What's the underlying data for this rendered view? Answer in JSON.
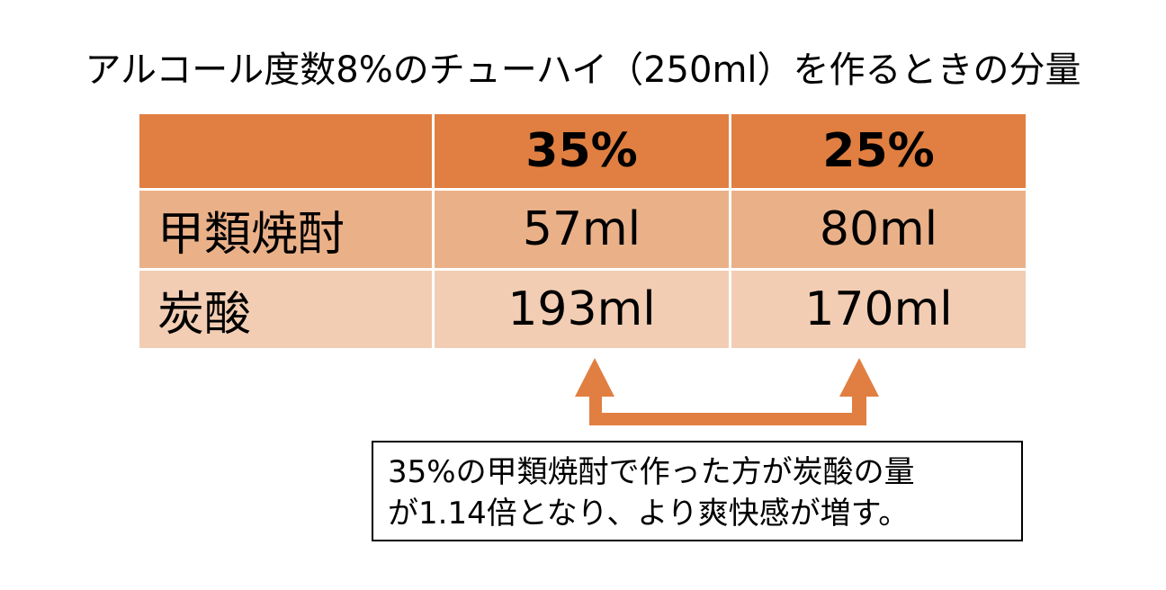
{
  "title": "アルコール度数8%のチューハイ（250ml）を作るときの分量",
  "table": {
    "headers": [
      "",
      "35%",
      "25%"
    ],
    "rows": [
      {
        "label": "甲類焼酎",
        "values": [
          "57ml",
          "80ml"
        ]
      },
      {
        "label": "炭酸",
        "values": [
          "193ml",
          "170ml"
        ]
      }
    ]
  },
  "note": {
    "line1": "35%の甲類焼酎で作った方が炭酸の量",
    "line2": "が1.14倍となり、より爽快感が増す。"
  },
  "colors": {
    "header_bg": "#e07f41",
    "row1_bg": "#eab189",
    "row2_bg": "#f2cdb3",
    "arrow": "#e07f41"
  }
}
